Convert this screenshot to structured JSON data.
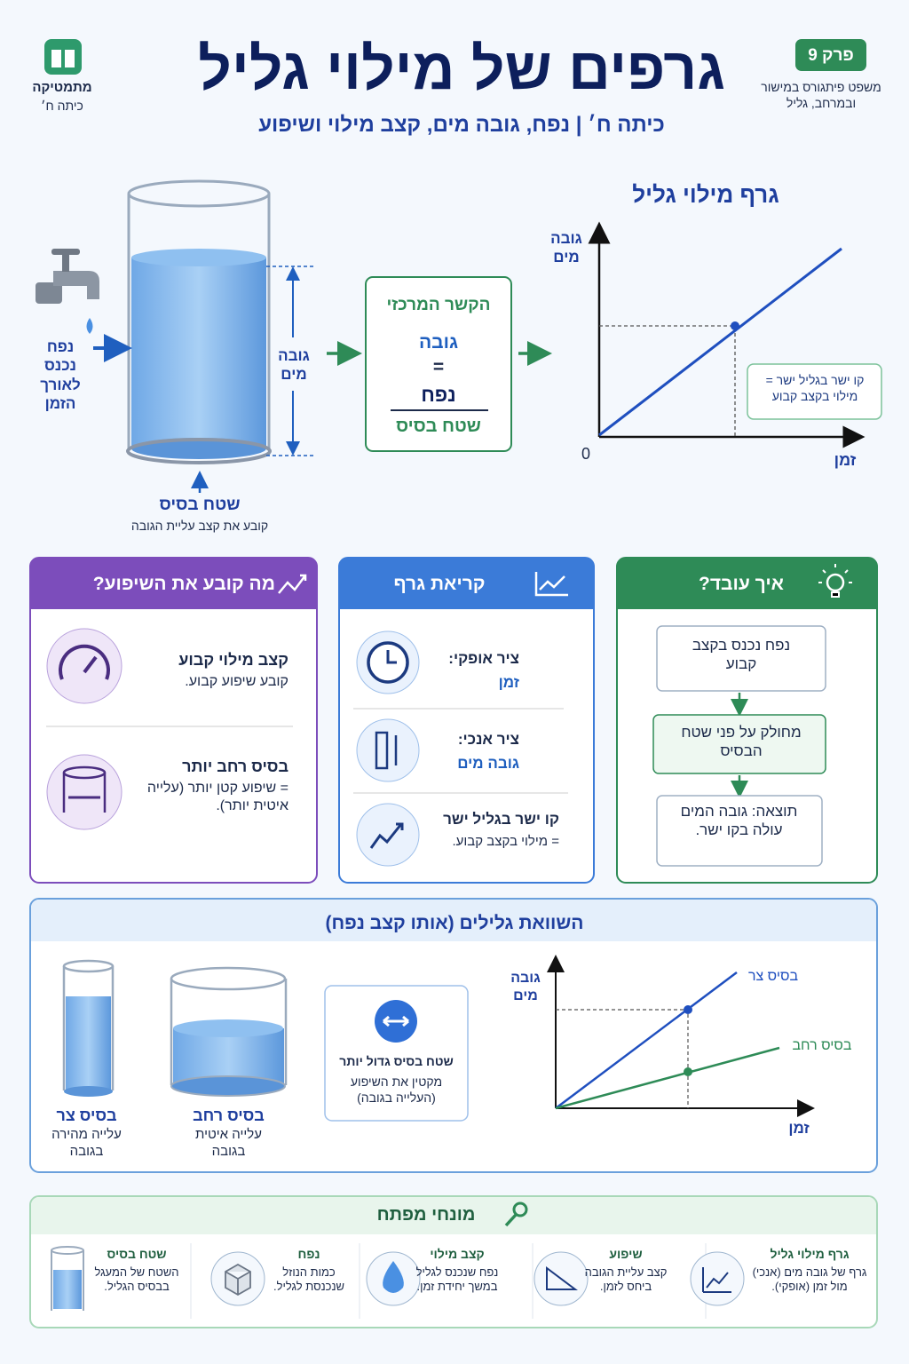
{
  "header": {
    "subject": "מתמטיקה",
    "grade": "כיתה ח׳",
    "title": "גרפים של מילוי גליל",
    "subtitle": "כיתה ח׳ | נפח, גובה מים, קצב מילוי ושיפוע",
    "chapter": "פרק 9",
    "chapter_note": "משפט פיתגורס במישור ובמרחב, גליל"
  },
  "diagram": {
    "inflow": "נפח נכנס לאורך הזמן",
    "height": "גובה מים",
    "base": "שטח בסיס",
    "base_note": "קובע את קצב עליית הגובה",
    "relation_title": "הקשר המרכזי",
    "relation_top": "גובה",
    "relation_equals": "=",
    "relation_numerator": "נפח",
    "relation_denominator": "שטח בסיס"
  },
  "graph": {
    "title": "גרף מילוי גליל",
    "y_label": "גובה מים",
    "x_label": "זמן",
    "origin": "0",
    "note": "קו ישר בגליל ישר = מילוי בקצב קבוע"
  },
  "panels": {
    "how": {
      "title": "איך עובד?",
      "steps": [
        "נפח נכנס בקצב קבוע",
        "מחולק על פני שטח הבסיס",
        "תוצאה: גובה המים עולה בקו ישר."
      ]
    },
    "reading": {
      "title": "קריאת גרף",
      "items": [
        {
          "label": "ציר אופקי:",
          "text": "זמן"
        },
        {
          "label": "ציר אנכי:",
          "text": "גובה מים"
        },
        {
          "label": "קו ישר בגליל ישר",
          "text": "= מילוי בקצב קבוע."
        }
      ]
    },
    "slope": {
      "title": "מה קובע את השיפוע?",
      "items": [
        {
          "label": "קצב מילוי קבוע",
          "text": "קובע שיפוע קבוע."
        },
        {
          "label": "בסיס רחב יותר",
          "text": "= שיפוע קטן יותר (עלייה איטית יותר)."
        }
      ]
    }
  },
  "comparison": {
    "title": "השוואת גלילים (אותו קצב נפח)",
    "narrow": {
      "label": "בסיס צר",
      "text": "עלייה מהירה בגובה"
    },
    "wide": {
      "label": "בסיס רחב",
      "text": "עלייה איטית בגובה"
    },
    "note": {
      "title": "שטח בסיס גדול יותר",
      "text": "מקטין את השיפוע (העלייה בגובה)"
    },
    "graph": {
      "y_label": "גובה מים",
      "x_label": "זמן",
      "series": [
        "בסיס צר",
        "בסיס רחב"
      ]
    }
  },
  "terms": {
    "title": "מונחי מפתח",
    "items": [
      {
        "term": "גרף מילוי גליל",
        "definition": "גרף של גובה מים (אנכי) מול זמן (אופקי)."
      },
      {
        "term": "שיפוע",
        "definition": "קצב עליית הגובה ביחס לזמן."
      },
      {
        "term": "קצב מילוי",
        "definition": "נפח שנכנס לגליל במשך יחידת זמן."
      },
      {
        "term": "נפח",
        "definition": "כמות הנוזל שנכנסת לגליל."
      },
      {
        "term": "שטח בסיס",
        "definition": "השטח של המעגל בבסיס הגליל."
      }
    ]
  }
}
